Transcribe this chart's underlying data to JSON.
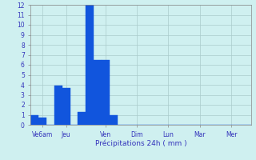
{
  "bar_values": [
    1,
    0.7,
    0,
    3.9,
    3.7,
    0,
    1.3,
    12,
    6.5,
    6.5,
    1,
    0,
    0,
    0,
    0,
    0,
    0,
    0,
    0,
    0,
    0,
    0,
    0,
    0,
    0,
    0,
    0,
    0
  ],
  "bar_color": "#1155dd",
  "background_color": "#cff0f0",
  "grid_color": "#aacccc",
  "xlabel": "Précipitations 24h ( mm )",
  "xlabel_color": "#2222bb",
  "tick_labels": [
    "Ve6am",
    "Jeu",
    "Ven",
    "Dim",
    "Lun",
    "Mar",
    "Mer"
  ],
  "tick_positions": [
    1,
    4,
    9,
    13,
    17,
    21,
    25
  ],
  "ylim": [
    0,
    12
  ],
  "yticks": [
    0,
    1,
    2,
    3,
    4,
    5,
    6,
    7,
    8,
    9,
    10,
    11,
    12
  ],
  "tick_color": "#3333bb",
  "spine_color": "#888888",
  "n_bars": 28,
  "figsize": [
    3.2,
    2.0
  ],
  "dpi": 100
}
